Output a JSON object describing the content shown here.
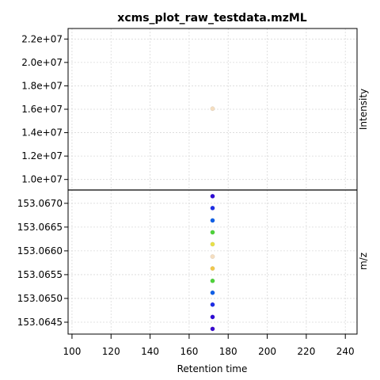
{
  "chart_data": {
    "type": "scatter",
    "title": "xcms_plot_raw_testdata.mzML",
    "xlabel": "Retention time",
    "xlim": [
      98,
      246
    ],
    "x_ticks": [
      100,
      120,
      140,
      160,
      180,
      200,
      220,
      240
    ],
    "grid": true,
    "panels": [
      {
        "name": "intensity",
        "ylabel": "Intensity",
        "ylim": [
          9100000,
          22900000
        ],
        "y_ticks": [
          10000000,
          12000000,
          14000000,
          16000000,
          18000000,
          20000000,
          22000000
        ],
        "y_tick_labels": [
          "1.0e+07",
          "1.2e+07",
          "1.4e+07",
          "1.6e+07",
          "1.8e+07",
          "2.0e+07",
          "2.2e+07"
        ],
        "points": [
          {
            "x": 172,
            "y": 16050000,
            "color": "#f5dec0"
          }
        ]
      },
      {
        "name": "mz",
        "ylabel": "m/z",
        "ylim": [
          153.06425,
          153.06728
        ],
        "y_ticks": [
          153.0645,
          153.065,
          153.0655,
          153.066,
          153.0665,
          153.067
        ],
        "y_tick_labels": [
          "153.0645",
          "153.0650",
          "153.0655",
          "153.0660",
          "153.0665",
          "153.0670"
        ],
        "points": [
          {
            "x": 172,
            "y": 153.06715,
            "color": "#2e0bd6"
          },
          {
            "x": 172,
            "y": 153.0669,
            "color": "#1f2ee6"
          },
          {
            "x": 172,
            "y": 153.06664,
            "color": "#1060e8"
          },
          {
            "x": 172,
            "y": 153.06639,
            "color": "#4ed33a"
          },
          {
            "x": 172,
            "y": 153.06614,
            "color": "#e8e04a"
          },
          {
            "x": 172,
            "y": 153.06588,
            "color": "#f5dec0"
          },
          {
            "x": 172,
            "y": 153.06563,
            "color": "#f0c84a"
          },
          {
            "x": 172,
            "y": 153.06537,
            "color": "#4ed33a"
          },
          {
            "x": 172,
            "y": 153.06512,
            "color": "#1060e8"
          },
          {
            "x": 172,
            "y": 153.06487,
            "color": "#1f2ee6"
          },
          {
            "x": 172,
            "y": 153.06461,
            "color": "#2e0bd6"
          },
          {
            "x": 172,
            "y": 153.06436,
            "color": "#3a0ad0"
          }
        ]
      }
    ]
  }
}
